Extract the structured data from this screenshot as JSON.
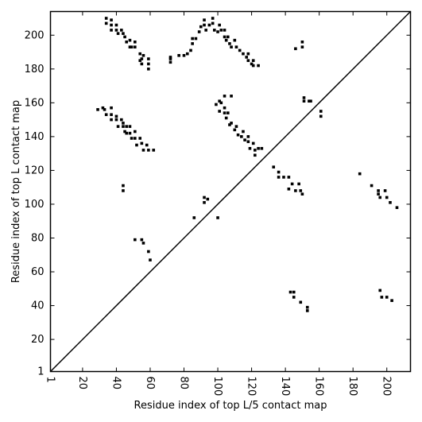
{
  "chart_data": {
    "type": "scatter",
    "x_label": "Residue index of top L/5 contact map",
    "y_label": "Residue index of top L contact map",
    "color": "#000000",
    "xlim": [
      1,
      214
    ],
    "ylim": [
      1,
      214
    ],
    "xticks": [
      1,
      20,
      40,
      60,
      80,
      100,
      120,
      140,
      160,
      180,
      200
    ],
    "yticks": [
      1,
      20,
      40,
      60,
      80,
      100,
      120,
      140,
      160,
      180,
      200
    ],
    "x": [
      34,
      34,
      37,
      37,
      37,
      40,
      40,
      41,
      43,
      44,
      45,
      46,
      48,
      48,
      49,
      51,
      51,
      54,
      55,
      54,
      55,
      56,
      59,
      59,
      59,
      72,
      72,
      72,
      77,
      80,
      82,
      84,
      85,
      85,
      87,
      89,
      90,
      92,
      92,
      93,
      95,
      97,
      97,
      98,
      100,
      101,
      102,
      104,
      104,
      105,
      106,
      107,
      108,
      110,
      111,
      113,
      115,
      117,
      118,
      118,
      120,
      121,
      121,
      124,
      146,
      150,
      150,
      29,
      32,
      33,
      34,
      37,
      37,
      37,
      40,
      40,
      41,
      43,
      44,
      44,
      45,
      46,
      46,
      48,
      48,
      49,
      51,
      51,
      52,
      54,
      55,
      56,
      58,
      59,
      62,
      44,
      44,
      99,
      101,
      101,
      102,
      104,
      104,
      104,
      105,
      106,
      107,
      108,
      108,
      110,
      111,
      112,
      114,
      115,
      116,
      118,
      118,
      119,
      121,
      122,
      122,
      124,
      126,
      133,
      136,
      136,
      139,
      142,
      142,
      144,
      146,
      148,
      149,
      150,
      151,
      151,
      154,
      155,
      161,
      161,
      92,
      94,
      92,
      86,
      100,
      184,
      51,
      55,
      56,
      59,
      60,
      191,
      195,
      195,
      196,
      199,
      200,
      202,
      206,
      143,
      145,
      145,
      149,
      153,
      153,
      196,
      197,
      200,
      203
    ],
    "values": [
      210,
      207,
      209,
      206,
      203,
      206,
      203,
      201,
      203,
      201,
      199,
      196,
      197,
      193,
      193,
      196,
      193,
      189,
      186,
      185,
      183,
      188,
      186,
      183,
      180,
      187,
      186,
      184,
      188,
      188,
      189,
      191,
      195,
      198,
      198,
      202,
      205,
      206,
      209,
      203,
      206,
      210,
      207,
      203,
      202,
      206,
      203,
      203,
      199,
      197,
      199,
      195,
      193,
      197,
      193,
      191,
      189,
      187,
      189,
      185,
      183,
      182,
      185,
      182,
      192,
      193,
      196,
      156,
      157,
      156,
      153,
      157,
      153,
      150,
      152,
      150,
      146,
      150,
      148,
      146,
      143,
      146,
      142,
      146,
      142,
      139,
      143,
      139,
      135,
      139,
      136,
      132,
      135,
      132,
      132,
      111,
      108,
      159,
      161,
      155,
      160,
      164,
      157,
      154,
      151,
      154,
      147,
      164,
      148,
      144,
      146,
      141,
      140,
      143,
      138,
      137,
      140,
      133,
      136,
      132,
      129,
      133,
      133,
      122,
      119,
      116,
      116,
      116,
      109,
      112,
      108,
      112,
      108,
      106,
      163,
      161,
      161,
      161,
      155,
      152,
      104,
      103,
      101,
      92,
      92,
      118,
      79,
      79,
      77,
      72,
      67,
      111,
      108,
      106,
      104,
      108,
      104,
      101,
      98,
      48,
      48,
      45,
      42,
      39,
      37,
      49,
      45,
      45,
      43
    ]
  }
}
